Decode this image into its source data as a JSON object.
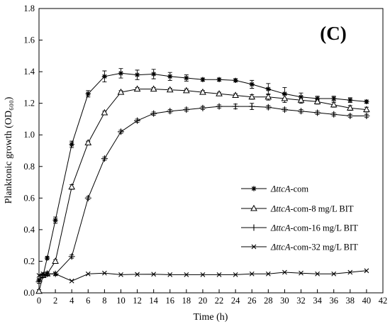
{
  "chart_data": {
    "type": "line",
    "panel_label": "(C)",
    "xlabel": "Time (h)",
    "ylabel": "Planktonic growth (OD₆₀₀)",
    "xlim": [
      0,
      42
    ],
    "ylim": [
      0.0,
      1.8
    ],
    "xticks": [
      0,
      2,
      4,
      6,
      8,
      10,
      12,
      14,
      16,
      18,
      20,
      22,
      24,
      26,
      28,
      30,
      32,
      34,
      36,
      38,
      40,
      42
    ],
    "yticks": [
      0.0,
      0.2,
      0.4,
      0.6,
      0.8,
      1.0,
      1.2,
      1.4,
      1.6,
      1.8
    ],
    "ytick_labels": [
      "0.0",
      "0.2",
      "0.4",
      "0.6",
      "0.8",
      "1.0",
      "1.2",
      "1.4",
      "1.6",
      "1.8"
    ],
    "grid": false,
    "legend_position": "center-right",
    "series": [
      {
        "name": "ΔttcA-com",
        "name_italic": "ΔttcA",
        "name_rest": "-com",
        "marker": "star",
        "x": [
          0,
          0.5,
          1,
          2,
          4,
          6,
          8,
          10,
          12,
          14,
          16,
          18,
          20,
          22,
          24,
          26,
          28,
          30,
          32,
          34,
          36,
          38,
          40
        ],
        "y": [
          0.08,
          0.11,
          0.22,
          0.46,
          0.94,
          1.26,
          1.37,
          1.39,
          1.38,
          1.385,
          1.37,
          1.36,
          1.35,
          1.35,
          1.345,
          1.32,
          1.29,
          1.26,
          1.24,
          1.23,
          1.23,
          1.22,
          1.21
        ],
        "err": [
          0.01,
          0.01,
          0.01,
          0.02,
          0.02,
          0.02,
          0.035,
          0.03,
          0.03,
          0.03,
          0.025,
          0.02,
          0.01,
          0.01,
          0.01,
          0.025,
          0.035,
          0.04,
          0.025,
          0.015,
          0.015,
          0.015,
          0.01
        ]
      },
      {
        "name": "ΔttcA-com-8 mg/L BIT",
        "name_italic": "ΔttcA",
        "name_rest": "-com-8 mg/L BIT",
        "marker": "triangle",
        "x": [
          0,
          0.5,
          1,
          2,
          4,
          6,
          8,
          10,
          12,
          14,
          16,
          18,
          20,
          22,
          24,
          26,
          28,
          30,
          32,
          34,
          36,
          38,
          40
        ],
        "y": [
          0.01,
          0.11,
          0.12,
          0.2,
          0.67,
          0.95,
          1.14,
          1.27,
          1.29,
          1.29,
          1.285,
          1.28,
          1.27,
          1.26,
          1.25,
          1.24,
          1.24,
          1.23,
          1.22,
          1.21,
          1.19,
          1.17,
          1.16
        ],
        "err": [
          0.01,
          0.01,
          0.01,
          0.01,
          0.015,
          0.01,
          0.01,
          0.01,
          0.01,
          0.01,
          0.01,
          0.01,
          0.01,
          0.01,
          0.01,
          0.015,
          0.02,
          0.025,
          0.02,
          0.015,
          0.015,
          0.015,
          0.015
        ]
      },
      {
        "name": "ΔttcA-com-16 mg/L BIT",
        "name_italic": "ΔttcA",
        "name_rest": "-com-16 mg/L BIT",
        "marker": "plus",
        "x": [
          0,
          0.5,
          1,
          2,
          4,
          6,
          8,
          10,
          12,
          14,
          16,
          18,
          20,
          22,
          24,
          26,
          28,
          30,
          32,
          34,
          36,
          38,
          40
        ],
        "y": [
          0.07,
          0.11,
          0.12,
          0.12,
          0.23,
          0.6,
          0.85,
          1.02,
          1.09,
          1.135,
          1.15,
          1.16,
          1.17,
          1.18,
          1.18,
          1.18,
          1.175,
          1.16,
          1.15,
          1.14,
          1.13,
          1.12,
          1.12
        ],
        "err": [
          0.01,
          0.01,
          0.01,
          0.01,
          0.01,
          0.01,
          0.01,
          0.01,
          0.01,
          0.01,
          0.01,
          0.01,
          0.01,
          0.01,
          0.015,
          0.02,
          0.01,
          0.01,
          0.01,
          0.01,
          0.01,
          0.01,
          0.01
        ]
      },
      {
        "name": "ΔttcA-com-32 mg/L BIT",
        "name_italic": "ΔttcA",
        "name_rest": "-com-32 mg/L BIT",
        "marker": "x",
        "x": [
          0,
          0.5,
          1,
          2,
          4,
          6,
          8,
          10,
          12,
          14,
          16,
          18,
          20,
          22,
          24,
          26,
          28,
          30,
          32,
          34,
          36,
          38,
          40
        ],
        "y": [
          0.11,
          0.12,
          0.12,
          0.12,
          0.075,
          0.12,
          0.125,
          0.115,
          0.117,
          0.118,
          0.115,
          0.115,
          0.115,
          0.115,
          0.115,
          0.12,
          0.12,
          0.13,
          0.125,
          0.12,
          0.12,
          0.13,
          0.14
        ],
        "err": [
          0,
          0,
          0,
          0,
          0,
          0,
          0,
          0,
          0,
          0,
          0,
          0,
          0,
          0,
          0,
          0,
          0,
          0,
          0,
          0,
          0,
          0,
          0
        ]
      }
    ]
  }
}
